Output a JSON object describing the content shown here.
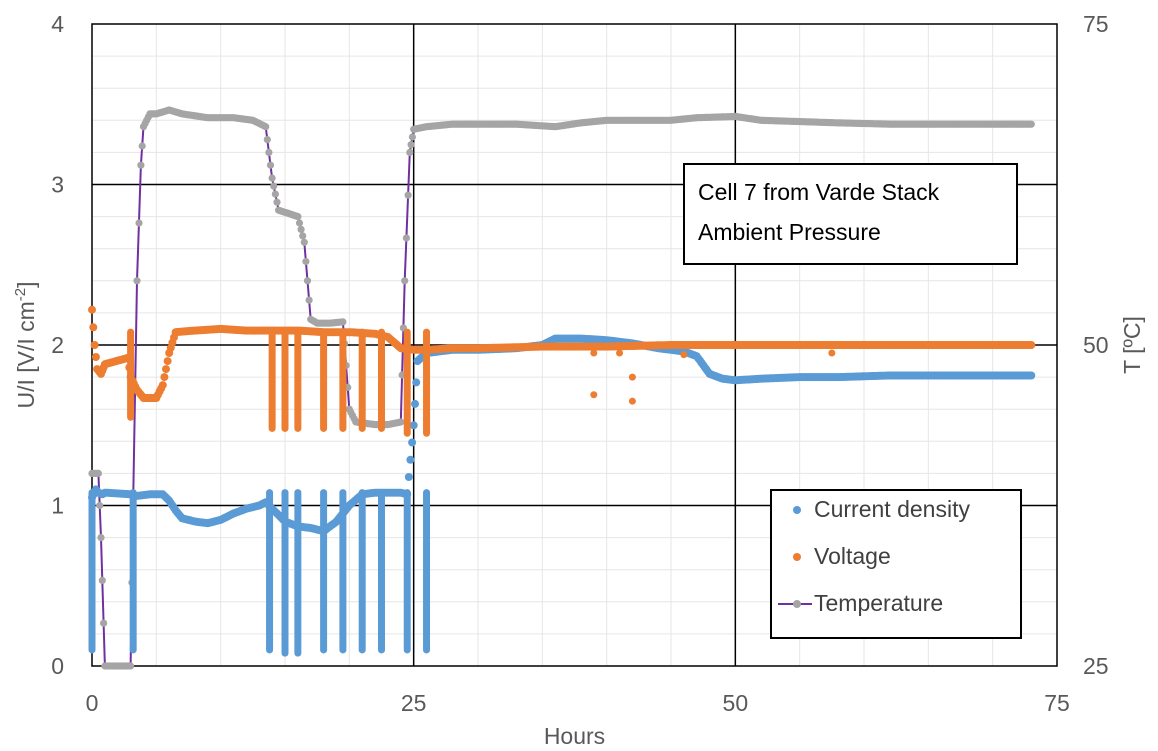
{
  "chart_data": {
    "type": "scatter",
    "title": "",
    "xlabel": "Hours",
    "ylabel_left": "U/I [V/I cm",
    "ylabel_left_sup": "-2",
    "ylabel_left_end": "]",
    "ylabel_right": "T [ºC]",
    "xlim": [
      0,
      75
    ],
    "ylim_left": [
      0,
      4
    ],
    "ylim_right": [
      25,
      75
    ],
    "x_ticks": [
      "0",
      "25",
      "50",
      "75"
    ],
    "y_left_ticks": [
      "0",
      "1",
      "2",
      "3",
      "4"
    ],
    "y_right_ticks": [
      "25",
      "50",
      "75"
    ],
    "grid": true,
    "legend_position": "bottom-right",
    "annotation": [
      "Cell 7 from Varde Stack",
      "Ambient Pressure"
    ],
    "colors": {
      "current_density": "#5B9BD5",
      "voltage": "#ED7D31",
      "temperature_marker": "#A5A5A5",
      "temperature_line": "#7030A0"
    },
    "series": [
      {
        "name": "Current density",
        "axis": "left",
        "points": [
          [
            0.0,
            1.05
          ],
          [
            0.3,
            1.1
          ],
          [
            0.5,
            1.08
          ],
          [
            0.8,
            1.07
          ],
          [
            1.0,
            1.08
          ],
          [
            3.0,
            1.07
          ],
          [
            3.5,
            1.06
          ],
          [
            4.5,
            1.07
          ],
          [
            5.5,
            1.07
          ],
          [
            6.0,
            1.03
          ],
          [
            6.5,
            0.97
          ],
          [
            7.0,
            0.92
          ],
          [
            8.0,
            0.9
          ],
          [
            9.0,
            0.89
          ],
          [
            10.0,
            0.91
          ],
          [
            11.0,
            0.95
          ],
          [
            12.0,
            0.98
          ],
          [
            13.0,
            1.0
          ],
          [
            13.5,
            1.02
          ],
          [
            14.0,
            0.98
          ],
          [
            15.0,
            0.9
          ],
          [
            16.0,
            0.87
          ],
          [
            17.0,
            0.86
          ],
          [
            18.0,
            0.84
          ],
          [
            19.0,
            0.9
          ],
          [
            20.0,
            1.0
          ],
          [
            21.0,
            1.07
          ],
          [
            22.0,
            1.08
          ],
          [
            23.0,
            1.08
          ],
          [
            24.0,
            1.08
          ],
          [
            24.5,
            1.07
          ],
          [
            25.0,
            1.5
          ],
          [
            25.3,
            1.9
          ],
          [
            26.0,
            1.95
          ],
          [
            28.0,
            1.97
          ],
          [
            30.0,
            1.97
          ],
          [
            33.0,
            1.98
          ],
          [
            35.0,
            2.0
          ],
          [
            36.0,
            2.04
          ],
          [
            38.0,
            2.04
          ],
          [
            40.0,
            2.03
          ],
          [
            42.0,
            2.01
          ],
          [
            44.0,
            1.98
          ],
          [
            46.0,
            1.96
          ],
          [
            47.0,
            1.93
          ],
          [
            48.0,
            1.82
          ],
          [
            49.0,
            1.79
          ],
          [
            50.0,
            1.78
          ],
          [
            52.0,
            1.79
          ],
          [
            55.0,
            1.8
          ],
          [
            58.0,
            1.8
          ],
          [
            62.0,
            1.81
          ],
          [
            66.0,
            1.81
          ],
          [
            70.0,
            1.81
          ],
          [
            73.0,
            1.81
          ]
        ],
        "drops": [
          [
            0.0,
            0.1
          ],
          [
            3.2,
            0.1
          ],
          [
            13.8,
            0.1
          ],
          [
            15.0,
            0.08
          ],
          [
            16.0,
            0.08
          ],
          [
            18.0,
            0.1
          ],
          [
            19.5,
            0.1
          ],
          [
            21.0,
            0.1
          ],
          [
            22.5,
            0.1
          ],
          [
            24.5,
            0.1
          ],
          [
            26.0,
            0.1
          ]
        ]
      },
      {
        "name": "Voltage",
        "axis": "left",
        "points": [
          [
            0.0,
            2.22
          ],
          [
            0.2,
            2.0
          ],
          [
            0.4,
            1.85
          ],
          [
            0.7,
            1.82
          ],
          [
            1.0,
            1.88
          ],
          [
            2.8,
            1.92
          ],
          [
            3.0,
            1.8
          ],
          [
            3.5,
            1.72
          ],
          [
            4.0,
            1.67
          ],
          [
            5.0,
            1.67
          ],
          [
            5.5,
            1.75
          ],
          [
            6.0,
            1.95
          ],
          [
            6.5,
            2.08
          ],
          [
            8.0,
            2.09
          ],
          [
            10.0,
            2.1
          ],
          [
            12.0,
            2.09
          ],
          [
            14.0,
            2.09
          ],
          [
            16.0,
            2.09
          ],
          [
            18.0,
            2.08
          ],
          [
            20.0,
            2.08
          ],
          [
            22.0,
            2.07
          ],
          [
            23.0,
            2.05
          ],
          [
            24.0,
            1.98
          ],
          [
            25.0,
            1.97
          ],
          [
            26.0,
            1.97
          ],
          [
            28.0,
            1.98
          ],
          [
            30.0,
            1.98
          ],
          [
            35.0,
            1.99
          ],
          [
            40.0,
            1.99
          ],
          [
            45.0,
            2.0
          ],
          [
            48.0,
            2.0
          ],
          [
            50.0,
            2.0
          ],
          [
            55.0,
            2.0
          ],
          [
            60.0,
            2.0
          ],
          [
            65.0,
            2.0
          ],
          [
            70.0,
            2.0
          ],
          [
            73.0,
            2.0
          ]
        ],
        "drops": [
          [
            3.0,
            1.55
          ],
          [
            14.0,
            1.48
          ],
          [
            15.0,
            1.48
          ],
          [
            16.0,
            1.48
          ],
          [
            18.0,
            1.48
          ],
          [
            19.5,
            1.48
          ],
          [
            21.0,
            1.48
          ],
          [
            22.5,
            1.48
          ],
          [
            24.5,
            1.45
          ],
          [
            26.0,
            1.45
          ]
        ],
        "outliers": [
          [
            39.0,
            1.95
          ],
          [
            39.0,
            1.69
          ],
          [
            41.0,
            1.95
          ],
          [
            42.0,
            1.8
          ],
          [
            42.0,
            1.65
          ],
          [
            46.0,
            1.94
          ],
          [
            57.5,
            1.95
          ]
        ]
      },
      {
        "name": "Temperature",
        "axis": "right",
        "points": [
          [
            0.0,
            40.0
          ],
          [
            0.5,
            40.0
          ],
          [
            0.7,
            35.0
          ],
          [
            1.0,
            25.0
          ],
          [
            3.0,
            25.0
          ],
          [
            3.2,
            38.0
          ],
          [
            3.5,
            55.0
          ],
          [
            3.8,
            64.0
          ],
          [
            4.0,
            67.0
          ],
          [
            4.5,
            68.0
          ],
          [
            5.0,
            68.0
          ],
          [
            6.0,
            68.3
          ],
          [
            7.0,
            68.0
          ],
          [
            9.0,
            67.7
          ],
          [
            11.0,
            67.7
          ],
          [
            12.5,
            67.5
          ],
          [
            13.5,
            67.0
          ],
          [
            14.0,
            63.0
          ],
          [
            14.5,
            60.5
          ],
          [
            16.0,
            60.0
          ],
          [
            16.5,
            58.0
          ],
          [
            17.0,
            52.0
          ],
          [
            17.5,
            51.7
          ],
          [
            18.5,
            51.7
          ],
          [
            19.5,
            51.8
          ],
          [
            20.0,
            45.0
          ],
          [
            20.5,
            44.0
          ],
          [
            22.0,
            43.8
          ],
          [
            23.0,
            43.8
          ],
          [
            24.0,
            44.0
          ],
          [
            24.3,
            55.0
          ],
          [
            24.7,
            65.0
          ],
          [
            25.0,
            66.8
          ],
          [
            26.0,
            67.0
          ],
          [
            28.0,
            67.2
          ],
          [
            30.0,
            67.2
          ],
          [
            33.0,
            67.2
          ],
          [
            36.0,
            67.0
          ],
          [
            38.0,
            67.3
          ],
          [
            40.0,
            67.5
          ],
          [
            42.0,
            67.5
          ],
          [
            45.0,
            67.5
          ],
          [
            47.0,
            67.7
          ],
          [
            50.0,
            67.8
          ],
          [
            52.0,
            67.5
          ],
          [
            55.0,
            67.4
          ],
          [
            58.0,
            67.3
          ],
          [
            62.0,
            67.2
          ],
          [
            66.0,
            67.2
          ],
          [
            70.0,
            67.2
          ],
          [
            73.0,
            67.2
          ]
        ]
      }
    ]
  }
}
